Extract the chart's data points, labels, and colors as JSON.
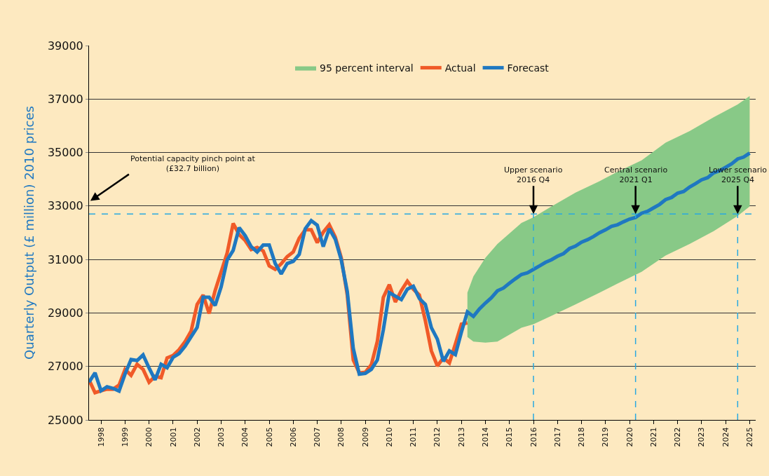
{
  "chart_data": {
    "type": "line",
    "ylabel": "Quarterly Output (£ million) 2010 prices",
    "x": [
      1998,
      1998.25,
      1998.5,
      1998.75,
      1999,
      1999.25,
      1999.5,
      1999.75,
      2000,
      2000.25,
      2000.5,
      2000.75,
      2001,
      2001.25,
      2001.5,
      2001.75,
      2002,
      2002.25,
      2002.5,
      2002.75,
      2003,
      2003.25,
      2003.5,
      2003.75,
      2004,
      2004.25,
      2004.5,
      2004.75,
      2005,
      2005.25,
      2005.5,
      2005.75,
      2006,
      2006.25,
      2006.5,
      2006.75,
      2007,
      2007.25,
      2007.5,
      2007.75,
      2008,
      2008.25,
      2008.5,
      2008.75,
      2009,
      2009.25,
      2009.5,
      2009.75,
      2010,
      2010.25,
      2010.5,
      2010.75,
      2011,
      2011.25,
      2011.5,
      2011.75,
      2012,
      2012.25,
      2012.5,
      2012.75,
      2013,
      2013.25,
      2013.5,
      2013.75,
      2014,
      2014.25,
      2014.5,
      2014.75,
      2015,
      2015.25,
      2015.5,
      2015.75,
      2016,
      2016.25,
      2016.5,
      2016.75,
      2017,
      2017.25,
      2017.5,
      2017.75,
      2018,
      2018.25,
      2018.5,
      2018.75,
      2019,
      2019.25,
      2019.5,
      2019.75,
      2020,
      2020.25,
      2020.5,
      2020.75,
      2021,
      2021.25,
      2021.5,
      2021.75,
      2022,
      2022.25,
      2022.5,
      2022.75,
      2023,
      2023.25,
      2023.5,
      2023.75,
      2024,
      2024.25,
      2024.5,
      2024.75,
      2025,
      2025.25,
      2025.5
    ],
    "series": [
      {
        "name": "95 percent interval",
        "type": "area",
        "color": "#88c987",
        "x": [
          2013.75,
          2014,
          2014.5,
          2015,
          2016,
          2016.5,
          2017.25,
          2018.25,
          2019.25,
          2020,
          2021,
          2022,
          2023,
          2024,
          2025,
          2025.5
        ],
        "values": [
          null,
          null,
          null,
          null,
          null,
          null,
          null,
          null,
          null,
          null,
          null,
          null,
          null,
          null,
          null,
          null
        ],
        "lower": [
          28100,
          27930,
          27890,
          27930,
          28450,
          28580,
          28890,
          29320,
          29760,
          30100,
          30540,
          31150,
          31580,
          32060,
          32630,
          32980
        ],
        "upper": [
          29760,
          30370,
          31060,
          31580,
          32370,
          32580,
          32980,
          33500,
          33930,
          34280,
          34710,
          35370,
          35800,
          36320,
          36800,
          37110
        ]
      },
      {
        "name": "Actual",
        "color": "#f05a28",
        "x": [
          1998,
          1998.25,
          1998.5,
          1998.75,
          1999,
          1999.25,
          1999.5,
          1999.75,
          2000,
          2000.25,
          2000.5,
          2000.75,
          2001,
          2001.25,
          2001.5,
          2001.75,
          2002,
          2002.25,
          2002.5,
          2002.75,
          2003,
          2003.25,
          2003.5,
          2003.75,
          2004,
          2004.25,
          2004.5,
          2004.75,
          2005,
          2005.25,
          2005.5,
          2005.75,
          2006,
          2006.25,
          2006.5,
          2006.75,
          2007,
          2007.25,
          2007.5,
          2007.75,
          2008,
          2008.25,
          2008.5,
          2008.75,
          2009,
          2009.25,
          2009.5,
          2009.75,
          2010,
          2010.25,
          2010.5,
          2010.75,
          2011,
          2011.25,
          2011.5,
          2011.75,
          2012,
          2012.25,
          2012.5,
          2012.75,
          2013,
          2013.25,
          2013.5,
          2013.75
        ],
        "values": [
          26500,
          26020,
          26090,
          26150,
          26150,
          26300,
          26890,
          26670,
          27080,
          26890,
          26410,
          26630,
          26580,
          27320,
          27410,
          27630,
          27930,
          28320,
          29320,
          29670,
          28980,
          29840,
          30540,
          31240,
          32350,
          31930,
          31710,
          31370,
          31450,
          31320,
          30760,
          30630,
          30840,
          31110,
          31280,
          31800,
          32110,
          32110,
          31630,
          32020,
          32300,
          31840,
          31060,
          29670,
          27240,
          26760,
          26780,
          27060,
          27930,
          29580,
          30060,
          29410,
          29840,
          30190,
          29890,
          29670,
          28710,
          27580,
          27020,
          27320,
          27130,
          27840,
          28580,
          28630
        ]
      },
      {
        "name": "Forecast",
        "color": "#1f78c1",
        "values": [
          26410,
          26760,
          26090,
          26240,
          26180,
          26080,
          26720,
          27260,
          27220,
          27430,
          26940,
          26500,
          27080,
          26950,
          27340,
          27480,
          27760,
          28110,
          28460,
          29590,
          29590,
          29280,
          29980,
          30980,
          31340,
          32190,
          31890,
          31480,
          31280,
          31540,
          31540,
          30850,
          30460,
          30850,
          30930,
          31190,
          32150,
          32450,
          32280,
          31480,
          32150,
          31760,
          30980,
          29800,
          27670,
          26710,
          26740,
          26890,
          27240,
          28370,
          29760,
          29630,
          29500,
          29890,
          30000,
          29540,
          29320,
          28450,
          28020,
          27190,
          27580,
          27440,
          28280,
          29040,
          28870,
          29150,
          29370,
          29570,
          29830,
          29930,
          30110,
          30280,
          30440,
          30500,
          30630,
          30760,
          30890,
          30990,
          31120,
          31220,
          31410,
          31500,
          31650,
          31740,
          31860,
          32000,
          32110,
          32240,
          32300,
          32410,
          32510,
          32570,
          32730,
          32800,
          32930,
          33060,
          33240,
          33320,
          33480,
          33540,
          33710,
          33840,
          33980,
          34060,
          34240,
          34320,
          34450,
          34580,
          34760,
          34830,
          34980
        ]
      }
    ],
    "xlim": [
      1998,
      2025.75
    ],
    "xticks": [
      {
        "value": 1998.5,
        "label": "1998"
      },
      {
        "value": 1999.5,
        "label": "1999"
      },
      {
        "value": 2000.5,
        "label": "2000"
      },
      {
        "value": 2001.5,
        "label": "2001"
      },
      {
        "value": 2002.5,
        "label": "2002"
      },
      {
        "value": 2003.5,
        "label": "2003"
      },
      {
        "value": 2004.5,
        "label": "2004"
      },
      {
        "value": 2005.5,
        "label": "2005"
      },
      {
        "value": 2006.5,
        "label": "2006"
      },
      {
        "value": 2007.5,
        "label": "2007"
      },
      {
        "value": 2008.5,
        "label": "2008"
      },
      {
        "value": 2009.5,
        "label": "2009"
      },
      {
        "value": 2010.5,
        "label": "2010"
      },
      {
        "value": 2011.5,
        "label": "2011"
      },
      {
        "value": 2012.5,
        "label": "2012"
      },
      {
        "value": 2013.5,
        "label": "2013"
      },
      {
        "value": 2014.5,
        "label": "2014"
      },
      {
        "value": 2015.5,
        "label": "2015"
      },
      {
        "value": 2016.5,
        "label": "2016"
      },
      {
        "value": 2017.5,
        "label": "2017"
      },
      {
        "value": 2018.5,
        "label": "2018"
      },
      {
        "value": 2019.5,
        "label": "2019"
      },
      {
        "value": 2020.5,
        "label": "2020"
      },
      {
        "value": 2021.5,
        "label": "2021"
      },
      {
        "value": 2022.5,
        "label": "2022"
      },
      {
        "value": 2023.5,
        "label": "2023"
      },
      {
        "value": 2024.5,
        "label": "2024"
      },
      {
        "value": 2025.5,
        "label": "2025"
      }
    ],
    "ylim": [
      25000,
      39000
    ],
    "yticks": [
      25000,
      27000,
      29000,
      31000,
      33000,
      35000,
      37000,
      39000
    ],
    "grid": "y",
    "legend": "top",
    "line_style": "solid",
    "marker": "none",
    "ref_lines": [
      {
        "axis": "y",
        "value": 32700,
        "color": "#29a9e0",
        "line_style": "dashed"
      },
      {
        "axis": "x",
        "value": 2016.5,
        "color": "#29a9e0",
        "line_style": "dashed"
      },
      {
        "axis": "x",
        "value": 2020.75,
        "color": "#29a9e0",
        "line_style": "dashed"
      },
      {
        "axis": "x",
        "value": 2025,
        "color": "#29a9e0",
        "line_style": "dashed"
      }
    ],
    "annotations": [
      "Potential capacity pinch point at\n(£32.7 billion)",
      {
        "text": "Upper scenario\n2016 Q4",
        "x": 2016.5,
        "y": 32700
      },
      {
        "text": "Central scenario\n2021 Q1",
        "x": 2020.75,
        "y": 32700
      },
      {
        "text": "Lower scenario\n2025 Q4",
        "x": 2025,
        "y": 32700
      }
    ]
  }
}
